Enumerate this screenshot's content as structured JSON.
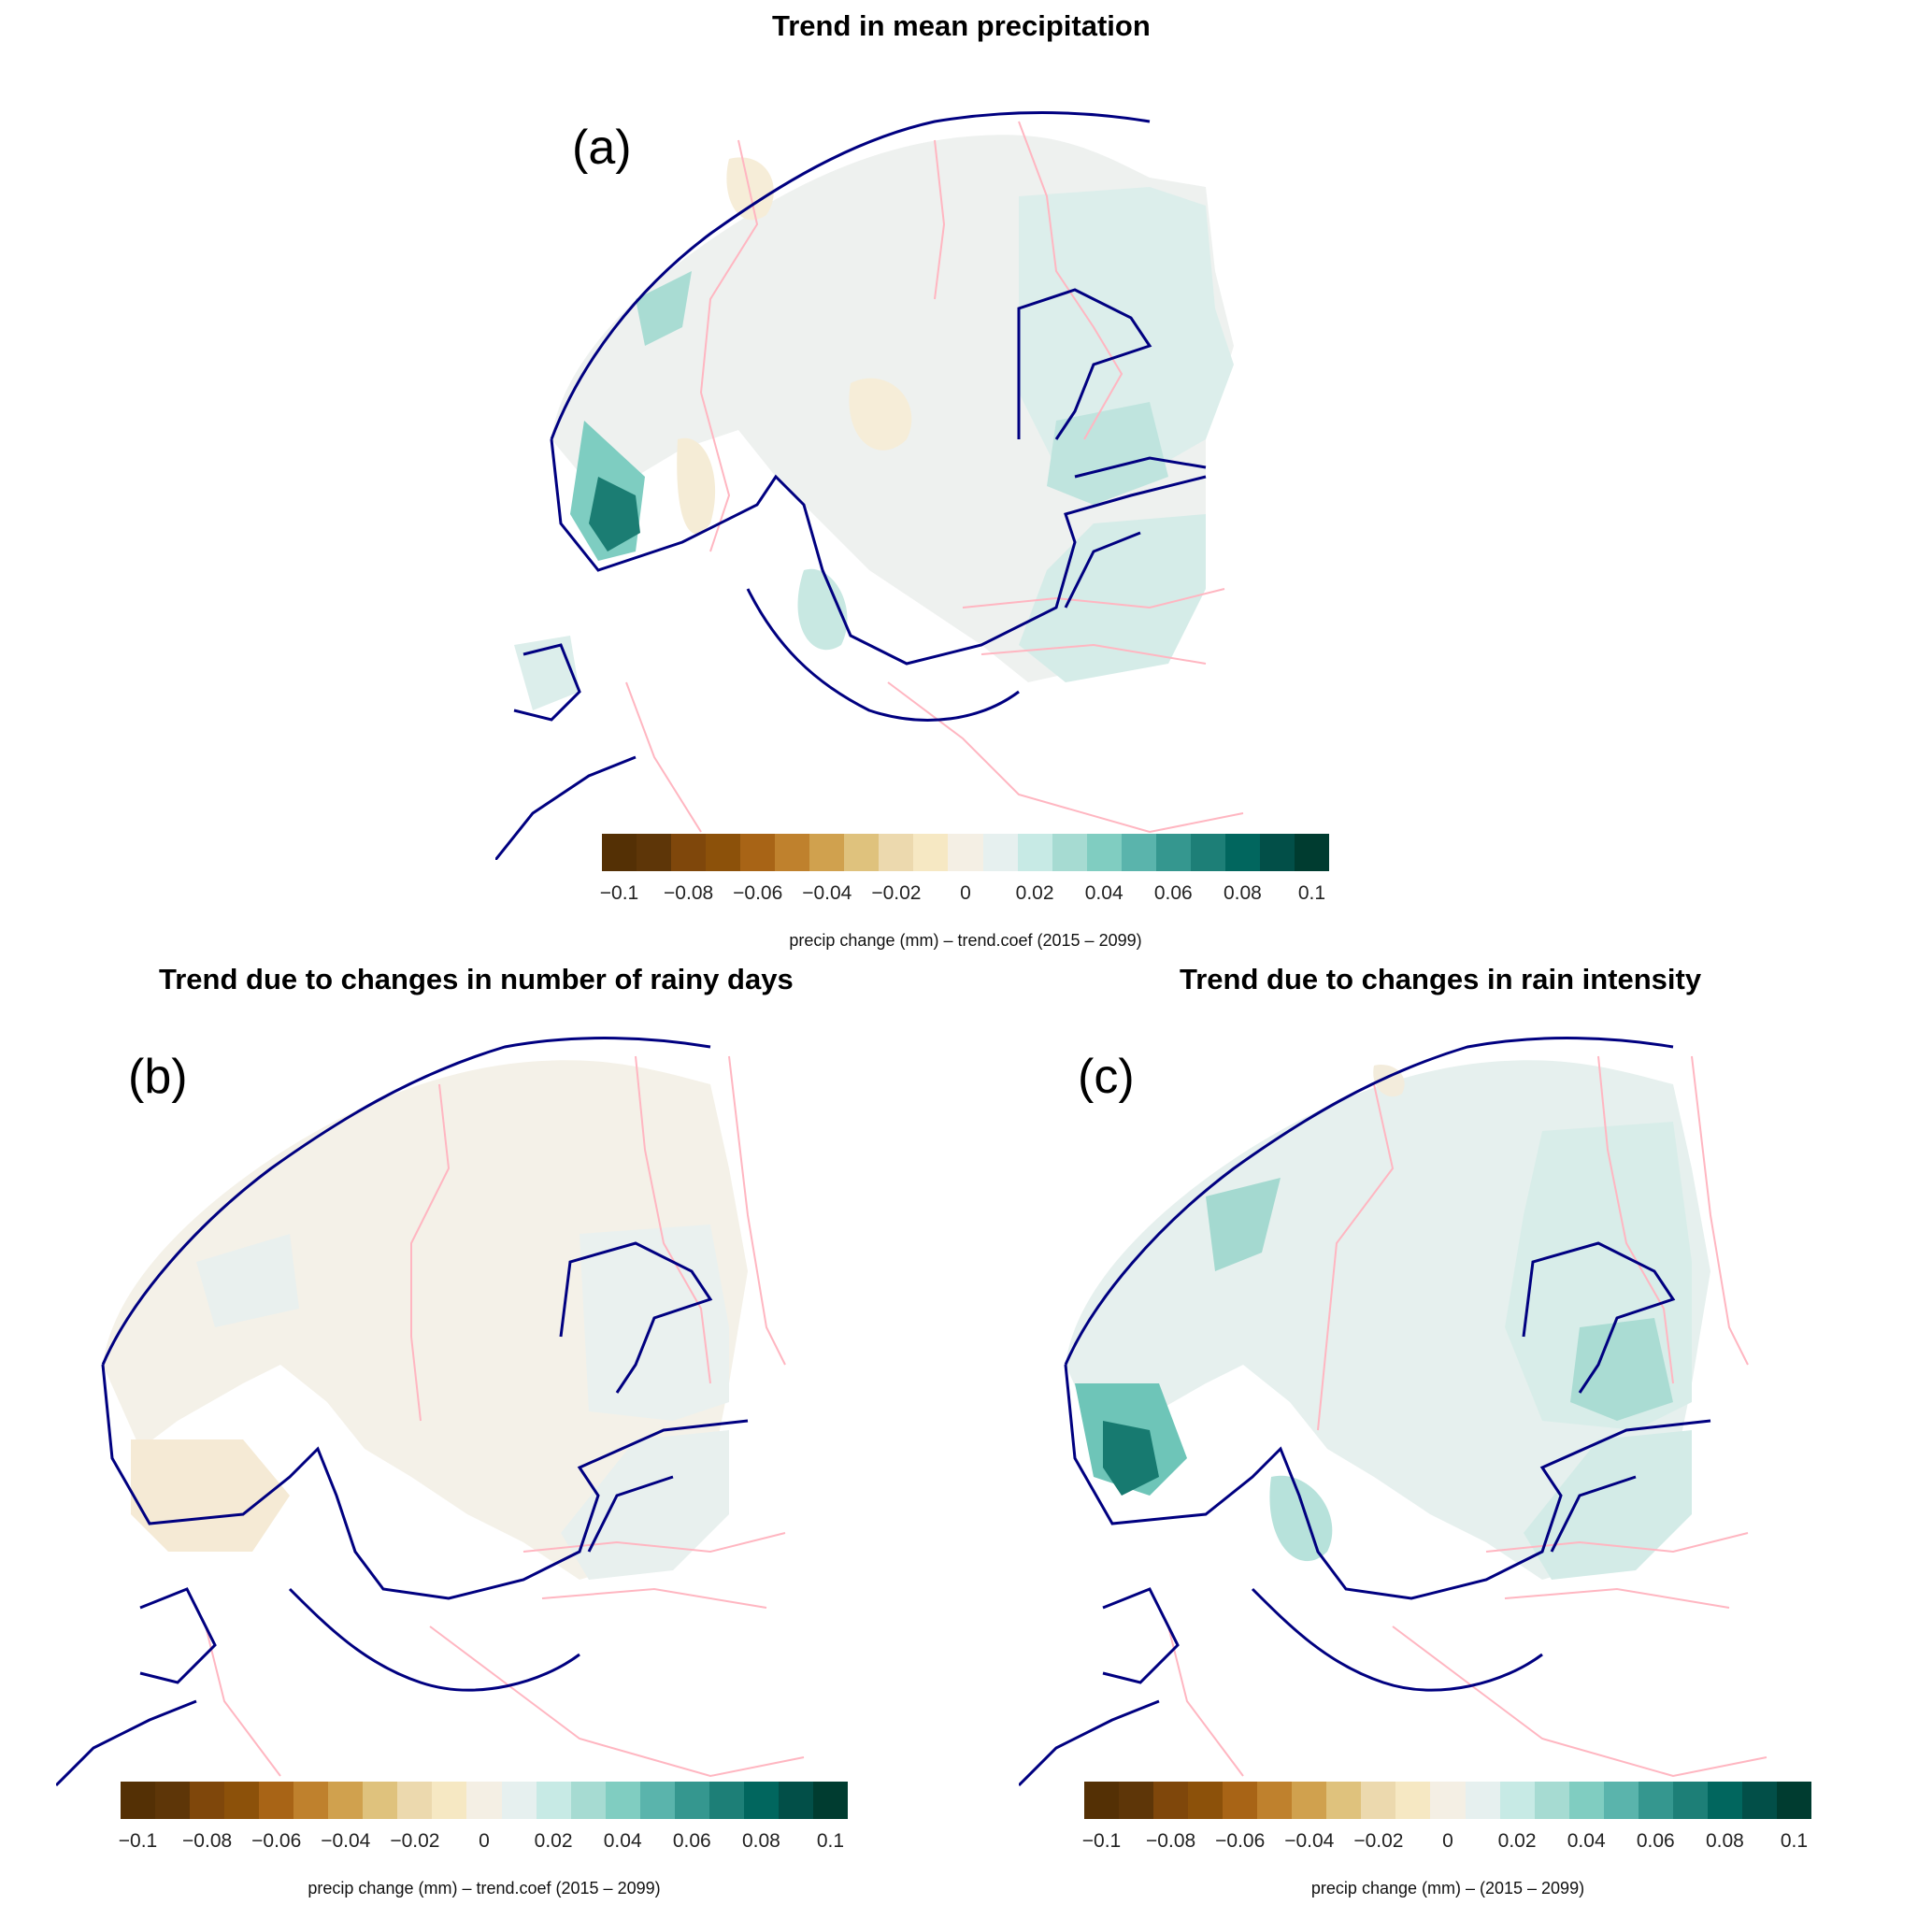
{
  "panels": [
    {
      "id": "a",
      "title": "Trend in mean precipitation",
      "label": "(a)",
      "caption": "precip change (mm)  –  trend.coef  (2015 – 2099)"
    },
    {
      "id": "b",
      "title": "Trend due to changes in number of rainy days",
      "label": "(b)",
      "caption": "precip change (mm)  –  trend.coef  (2015 – 2099)"
    },
    {
      "id": "c",
      "title": "Trend due to changes in rain intensity",
      "label": "(c)",
      "caption": "precip change (mm)  –     (2015 – 2099)"
    }
  ],
  "colorbar": {
    "colors": [
      "#543005",
      "#5e3608",
      "#7f470b",
      "#8c510a",
      "#a86416",
      "#bf812d",
      "#d0a14e",
      "#dfc27d",
      "#ecd9ae",
      "#f6e8c3",
      "#f4efe4",
      "#e6f0ef",
      "#c7eae5",
      "#a6dbd2",
      "#80cdc1",
      "#5ab4ac",
      "#35978f",
      "#1d7f77",
      "#01665e",
      "#024f48",
      "#003c30"
    ],
    "tick_labels": [
      "−0.1",
      "−0.08",
      "−0.06",
      "−0.04",
      "−0.02",
      "0",
      "0.02",
      "0.04",
      "0.06",
      "0.08",
      "0.1"
    ]
  },
  "legend_colors": {
    "coastline": "#000080",
    "borders": "#ffb6c1"
  }
}
